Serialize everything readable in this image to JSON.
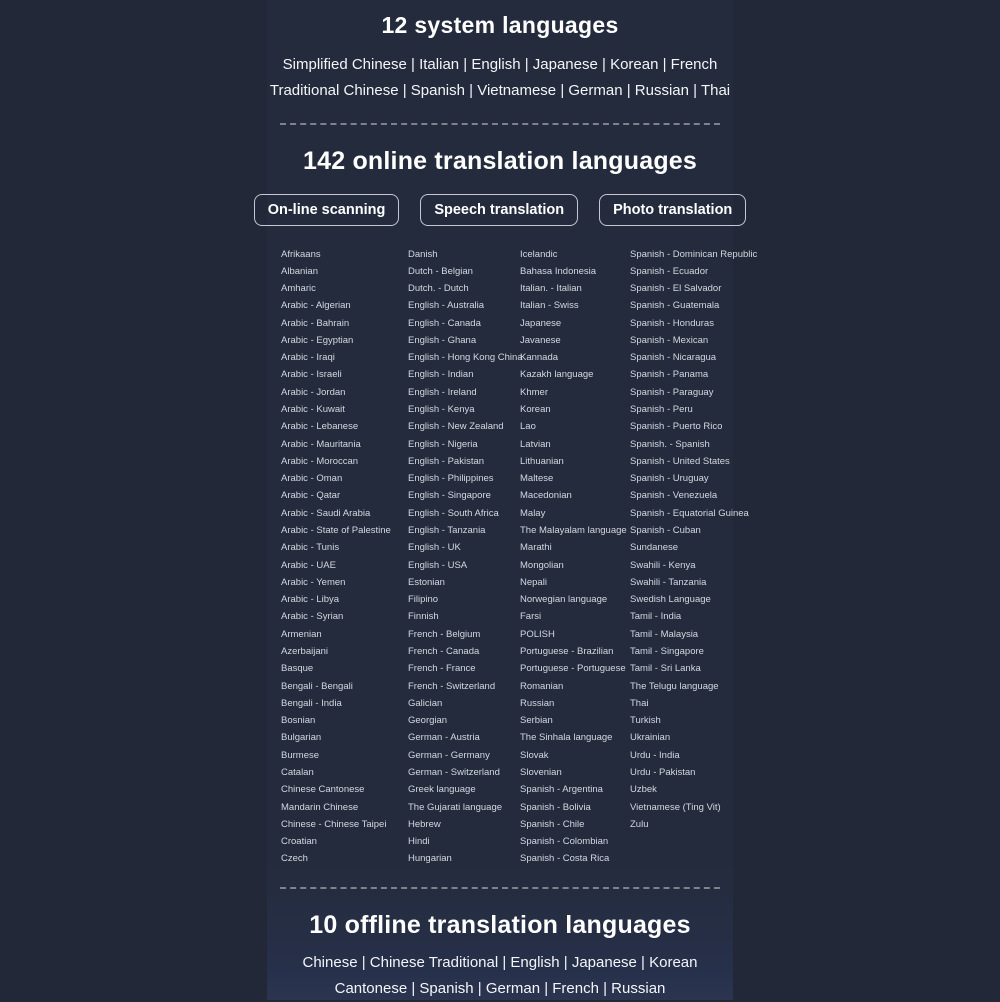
{
  "colors": {
    "background": "#222837",
    "panel": "#242b3c",
    "heading_text": "#ffffff",
    "list_text": "#d3d8e0",
    "divider": "#7d828c",
    "button_border": "#c3c8d2"
  },
  "system_section": {
    "title": "12 system languages",
    "line1": "Simplified Chinese | Italian | English | Japanese | Korean | French",
    "line2": "Traditional Chinese | Spanish | Vietnamese | German | Russian | Thai"
  },
  "online_section": {
    "title": "142 online translation languages",
    "buttons": [
      "On-line scanning",
      "Speech translation",
      "Photo translation"
    ],
    "columns": [
      [
        "Afrikaans",
        "Albanian",
        "Amharic",
        "Arabic - Algerian",
        "Arabic - Bahrain",
        "Arabic - Egyptian",
        "Arabic - Iraqi",
        "Arabic - Israeli",
        "Arabic - Jordan",
        "Arabic - Kuwait",
        "Arabic - Lebanese",
        "Arabic - Mauritania",
        "Arabic - Moroccan",
        "Arabic - Oman",
        "Arabic - Qatar",
        "Arabic - Saudi Arabia",
        "Arabic - State of Palestine",
        "Arabic - Tunis",
        "Arabic - UAE",
        "Arabic - Yemen",
        "Arabic - Libya",
        "Arabic - Syrian",
        "Armenian",
        "Azerbaijani",
        "Basque",
        "Bengali - Bengali",
        "Bengali - India",
        "Bosnian",
        "Bulgarian",
        "Burmese",
        "Catalan",
        "Chinese Cantonese",
        "Mandarin Chinese",
        "Chinese - Chinese Taipei",
        "Croatian",
        "Czech"
      ],
      [
        "Danish",
        "Dutch - Belgian",
        "Dutch. - Dutch",
        "English - Australia",
        "English - Canada",
        "English - Ghana",
        "English - Hong Kong China",
        "English - Indian",
        "English - Ireland",
        "English - Kenya",
        "English - New Zealand",
        "English - Nigeria",
        "English - Pakistan",
        "English - Philippines",
        "English - Singapore",
        "English - South Africa",
        "English - Tanzania",
        "English - UK",
        "English - USA",
        "Estonian",
        "Filipino",
        "Finnish",
        "French - Belgium",
        "French - Canada",
        "French - France",
        "French - Switzerland",
        "Galician",
        "Georgian",
        "German - Austria",
        "German - Germany",
        "German - Switzerland",
        "Greek language",
        "The Gujarati language",
        "Hebrew",
        "Hindi",
        "Hungarian"
      ],
      [
        "Icelandic",
        "Bahasa Indonesia",
        "Italian. - Italian",
        "Italian - Swiss",
        "Japanese",
        "Javanese",
        "Kannada",
        "Kazakh language",
        "Khmer",
        "Korean",
        "Lao",
        "Latvian",
        "Lithuanian",
        "Maltese",
        "Macedonian",
        "Malay",
        "The Malayalam language",
        "Marathi",
        "Mongolian",
        "Nepali",
        "Norwegian language",
        "Farsi",
        "POLISH",
        "Portuguese - Brazilian",
        "Portuguese - Portuguese",
        "Romanian",
        "Russian",
        "Serbian",
        "The Sinhala language",
        "Slovak",
        "Slovenian",
        "Spanish - Argentina",
        "Spanish - Bolivia",
        "Spanish - Chile",
        "Spanish - Colombian",
        "Spanish - Costa Rica"
      ],
      [
        "Spanish - Dominican Republic",
        "Spanish - Ecuador",
        "Spanish - El Salvador",
        "Spanish - Guatemala",
        "Spanish - Honduras",
        "Spanish - Mexican",
        "Spanish - Nicaragua",
        "Spanish - Panama",
        "Spanish - Paraguay",
        "Spanish - Peru",
        "Spanish - Puerto Rico",
        "Spanish. - Spanish",
        "Spanish - United States",
        "Spanish - Uruguay",
        "Spanish - Venezuela",
        "Spanish - Equatorial Guinea",
        "Spanish - Cuban",
        "Sundanese",
        "Swahili - Kenya",
        "Swahili - Tanzania",
        "Swedish Language",
        "Tamil - India",
        "Tamil - Malaysia",
        "Tamil - Singapore",
        "Tamil - Sri Lanka",
        "The Telugu language",
        "Thai",
        "Turkish",
        "Ukrainian",
        "Urdu - India",
        "Urdu - Pakistan",
        "Uzbek",
        "Vietnamese (Ting Vit)",
        "Zulu"
      ]
    ]
  },
  "offline_section": {
    "title": "10 offline translation languages",
    "line1": "Chinese | Chinese Traditional | English | Japanese | Korean",
    "line2": "Cantonese | Spanish | German | French | Russian"
  }
}
